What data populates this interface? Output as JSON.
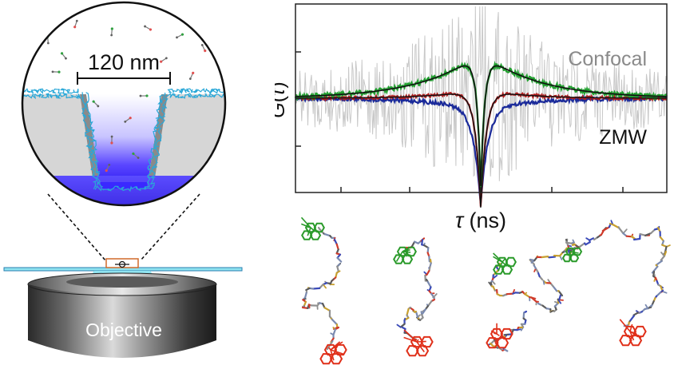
{
  "scale_label": "120 nm",
  "objective_label": "Objective",
  "plot": {
    "ylabel_main": "G",
    "ylabel_paren": "(τ)",
    "ylabel_tau": "τ",
    "ylabel_close": ")",
    "xlabel_tau": "τ",
    "xlabel_units": " (ns)",
    "curve_labels": {
      "confocal": "Confocal",
      "zmw": "ZMW"
    }
  },
  "colors": {
    "confocal_data": "#22a030",
    "zmw_data_red": "#b02020",
    "zmw_data_blue": "#1a2a9a",
    "noise": "#c8c8c8",
    "fit": "#111111",
    "dye_green": "#2a9a2a",
    "dye_red": "#e0301a",
    "well_fill": "#3b2cff",
    "glass": "#8fe3f0"
  }
}
